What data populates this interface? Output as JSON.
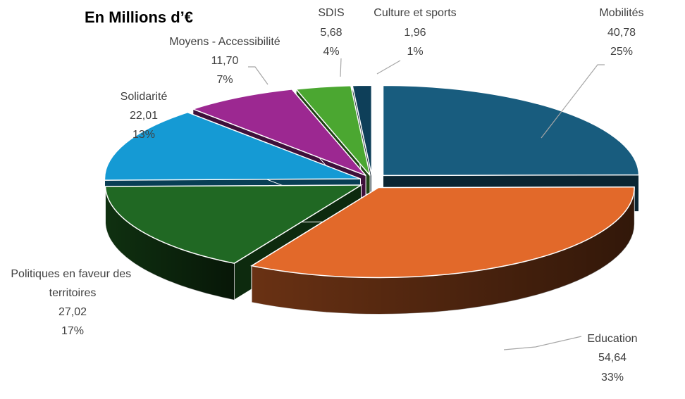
{
  "chart_data": {
    "type": "pie",
    "style": "3d-exploded",
    "title": "En Millions d’€",
    "legend": "none",
    "slices": [
      {
        "name": "Mobilités",
        "value": "40,78",
        "percent": "25%",
        "num": 40.78,
        "color": "#185C7E"
      },
      {
        "name": "Education",
        "value": "54,64",
        "percent": "33%",
        "num": 54.64,
        "color": "#E2692A"
      },
      {
        "name": "Politiques en faveur des territoires",
        "value": "27,02",
        "percent": "17%",
        "num": 27.02,
        "color": "#206823"
      },
      {
        "name": "Solidarité",
        "value": "22,01",
        "percent": "13%",
        "num": 22.01,
        "color": "#159AD4"
      },
      {
        "name": "Moyens - Accessibilité",
        "value": "11,70",
        "percent": "7%",
        "num": 11.7,
        "color": "#9C2891"
      },
      {
        "name": "SDIS",
        "value": "5,68",
        "percent": "4%",
        "num": 5.68,
        "color": "#4BA731"
      },
      {
        "name": "Culture et sports",
        "value": "1,96",
        "percent": "1%",
        "num": 1.96,
        "color": "#0E3F59"
      }
    ]
  }
}
